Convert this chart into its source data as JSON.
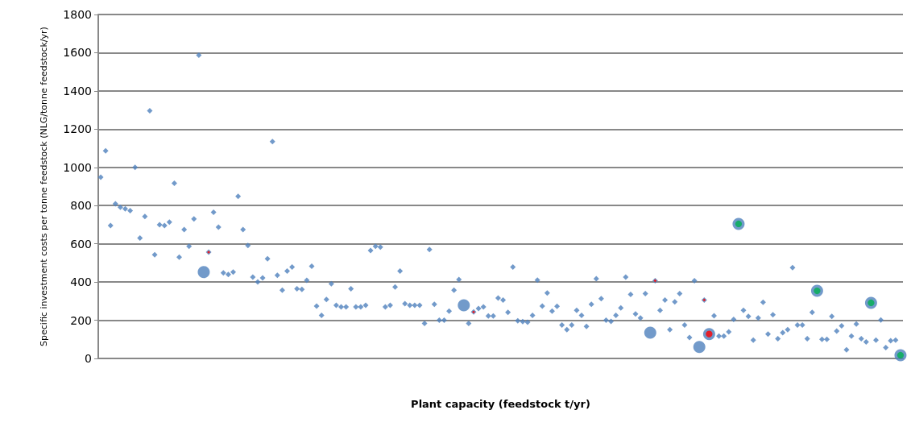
{
  "chart_data": {
    "type": "scatter",
    "xlabel": "Plant capacity (feedstock t/yr)",
    "ylabel": "Specific investment costs per tonne feedstock (NLG/tonne feedstock/yr)",
    "categories": [
      null,
      null,
      null,
      null,
      null,
      null,
      null,
      null,
      null,
      null,
      null,
      null,
      null,
      null,
      null,
      null,
      null,
      null,
      null,
      null,
      null,
      null,
      null,
      null,
      null,
      null,
      null,
      null,
      null,
      null,
      null,
      null,
      null,
      null,
      null,
      null,
      null,
      null,
      null,
      null,
      null,
      null,
      null,
      null,
      null,
      null,
      null,
      null,
      null,
      null,
      null,
      null,
      null,
      null,
      null,
      null,
      null,
      null,
      null,
      null,
      null,
      null,
      null,
      null,
      null,
      null,
      null,
      null,
      null,
      null,
      null,
      null,
      null,
      null,
      null,
      null,
      null,
      null,
      null,
      null,
      null,
      null,
      null,
      null,
      null,
      null,
      null,
      null,
      null,
      null,
      null,
      null,
      null,
      null,
      null,
      null,
      null,
      null,
      null,
      null,
      null,
      null,
      null,
      null,
      null,
      null,
      null,
      null,
      null,
      null,
      null,
      null,
      null,
      null,
      null,
      null,
      null,
      null,
      null,
      null,
      null,
      null,
      null,
      null,
      null,
      null,
      null,
      null,
      null,
      null,
      null,
      null,
      null,
      null,
      null,
      null,
      null,
      null,
      null,
      null,
      null,
      null,
      null,
      null,
      null,
      null,
      null,
      null,
      null,
      null,
      null,
      null,
      null,
      null,
      null,
      null,
      null,
      null,
      null,
      null,
      null,
      null,
      null,
      null
    ],
    "ylim": [
      0,
      1800
    ],
    "yticks": [
      0,
      200,
      400,
      600,
      800,
      1000,
      1200,
      1400,
      1600,
      1800
    ],
    "grid": "y",
    "series": [
      {
        "color": "#4f81bd",
        "marker": "diamond",
        "values": [
          948,
          1087,
          696,
          809,
          791,
          783,
          774,
          1000,
          630,
          743,
          1296,
          543,
          700,
          696,
          713,
          917,
          530,
          674,
          587,
          730,
          1587,
          null,
          556,
          765,
          687,
          448,
          439,
          452,
          848,
          674,
          591,
          426,
          400,
          422,
          522,
          1135,
          435,
          357,
          457,
          478,
          365,
          361,
          409,
          483,
          274,
          226,
          309,
          391,
          278,
          270,
          270,
          365,
          270,
          270,
          278,
          565,
          587,
          583,
          270,
          278,
          374,
          457,
          287,
          278,
          278,
          278,
          183,
          570,
          283,
          200,
          200,
          248,
          357,
          413,
          null,
          183,
          243,
          261,
          270,
          222,
          222,
          316,
          306,
          241,
          478,
          197,
          193,
          190,
          226,
          410,
          274,
          342,
          248,
          273,
          175,
          151,
          175,
          252,
          226,
          168,
          284,
          417,
          313,
          200,
          194,
          226,
          265,
          426,
          335,
          233,
          212,
          339,
          null,
          407,
          252,
          306,
          151,
          296,
          339,
          175,
          110,
          407,
          null,
          306,
          null,
          223,
          117,
          117,
          139,
          204,
          null,
          252,
          220,
          96,
          212,
          294,
          128,
          229,
          103,
          135,
          151,
          475,
          175,
          175,
          103,
          241,
          null,
          100,
          100,
          220,
          143,
          171,
          45,
          117,
          180,
          103,
          86,
          null,
          96,
          201,
          57,
          93,
          96,
          null
        ]
      },
      {
        "color": "#4f81bd",
        "marker": "circle",
        "values": [
          null,
          null,
          null,
          null,
          null,
          null,
          null,
          null,
          null,
          null,
          null,
          null,
          null,
          null,
          null,
          null,
          null,
          null,
          null,
          null,
          null,
          452,
          null,
          null,
          null,
          null,
          null,
          null,
          null,
          null,
          null,
          null,
          null,
          null,
          null,
          null,
          null,
          null,
          null,
          null,
          null,
          null,
          null,
          null,
          null,
          null,
          null,
          null,
          null,
          null,
          null,
          null,
          null,
          null,
          null,
          null,
          null,
          null,
          null,
          null,
          null,
          null,
          null,
          null,
          null,
          null,
          null,
          null,
          null,
          null,
          null,
          null,
          null,
          null,
          278,
          null,
          null,
          null,
          null,
          null,
          null,
          null,
          null,
          null,
          null,
          null,
          null,
          null,
          null,
          null,
          null,
          null,
          null,
          null,
          null,
          null,
          null,
          null,
          null,
          null,
          null,
          null,
          null,
          null,
          null,
          null,
          null,
          null,
          null,
          null,
          null,
          null,
          135,
          null,
          null,
          null,
          null,
          null,
          null,
          null,
          null,
          null,
          60,
          null,
          128,
          null,
          null,
          null,
          null,
          null,
          704,
          null,
          null,
          null,
          null,
          null,
          null,
          null,
          null,
          null,
          null,
          null,
          null,
          null,
          null,
          null,
          354,
          null,
          null,
          null,
          null,
          null,
          null,
          null,
          null,
          null,
          null,
          291,
          null,
          null,
          null,
          null,
          null,
          17
        ]
      },
      {
        "color": "#ff0000",
        "marker": "diamond",
        "values": [
          null,
          null,
          null,
          null,
          null,
          null,
          null,
          null,
          null,
          null,
          null,
          null,
          null,
          null,
          null,
          null,
          null,
          null,
          null,
          null,
          null,
          null,
          556,
          null,
          null,
          null,
          null,
          null,
          null,
          null,
          null,
          null,
          null,
          null,
          null,
          null,
          null,
          null,
          null,
          null,
          null,
          null,
          null,
          null,
          null,
          null,
          null,
          null,
          null,
          null,
          null,
          null,
          null,
          null,
          null,
          null,
          null,
          null,
          null,
          null,
          null,
          null,
          null,
          null,
          null,
          null,
          null,
          null,
          null,
          null,
          null,
          null,
          null,
          null,
          null,
          null,
          243,
          null,
          null,
          null,
          null,
          null,
          null,
          null,
          null,
          null,
          null,
          null,
          null,
          null,
          null,
          null,
          null,
          null,
          null,
          null,
          null,
          null,
          null,
          null,
          null,
          null,
          null,
          null,
          null,
          null,
          null,
          null,
          null,
          null,
          null,
          null,
          null,
          407,
          null,
          null,
          null,
          null,
          null,
          null,
          null,
          null,
          null,
          306,
          null,
          null,
          null,
          null,
          null,
          null,
          null,
          null,
          null,
          null,
          null,
          null,
          null,
          null,
          null,
          null,
          null,
          null,
          null,
          null,
          null,
          null,
          null,
          null,
          null,
          null,
          null,
          null,
          null,
          null,
          null,
          null,
          null,
          null,
          null,
          null,
          null,
          null,
          null,
          null
        ]
      },
      {
        "color": "#ff0000",
        "marker": "circle",
        "values": [
          null,
          null,
          null,
          null,
          null,
          null,
          null,
          null,
          null,
          null,
          null,
          null,
          null,
          null,
          null,
          null,
          null,
          null,
          null,
          null,
          null,
          null,
          null,
          null,
          null,
          null,
          null,
          null,
          null,
          null,
          null,
          null,
          null,
          null,
          null,
          null,
          null,
          null,
          null,
          null,
          null,
          null,
          null,
          null,
          null,
          null,
          null,
          null,
          null,
          null,
          null,
          null,
          null,
          null,
          null,
          null,
          null,
          null,
          null,
          null,
          null,
          null,
          null,
          null,
          null,
          null,
          null,
          null,
          null,
          null,
          null,
          null,
          null,
          null,
          null,
          null,
          null,
          null,
          null,
          null,
          null,
          null,
          null,
          null,
          null,
          null,
          null,
          null,
          null,
          null,
          null,
          null,
          null,
          null,
          null,
          null,
          null,
          null,
          null,
          null,
          null,
          null,
          null,
          null,
          null,
          null,
          null,
          null,
          null,
          null,
          null,
          null,
          null,
          null,
          null,
          null,
          null,
          null,
          null,
          null,
          null,
          null,
          null,
          null,
          128,
          null,
          null,
          null,
          null,
          null,
          null,
          null,
          null,
          null,
          null,
          null,
          null,
          null,
          null,
          null,
          null,
          null,
          null,
          null,
          null,
          null,
          null,
          null,
          null,
          null,
          null,
          null,
          null,
          null,
          null,
          null,
          null,
          null,
          null,
          null,
          null,
          null,
          null,
          null
        ]
      },
      {
        "color": "#00b050",
        "marker": "circle",
        "values": [
          null,
          null,
          null,
          null,
          null,
          null,
          null,
          null,
          null,
          null,
          null,
          null,
          null,
          null,
          null,
          null,
          null,
          null,
          null,
          null,
          null,
          null,
          null,
          null,
          null,
          null,
          null,
          null,
          null,
          null,
          null,
          null,
          null,
          null,
          null,
          null,
          null,
          null,
          null,
          null,
          null,
          null,
          null,
          null,
          null,
          null,
          null,
          null,
          null,
          null,
          null,
          null,
          null,
          null,
          null,
          null,
          null,
          null,
          null,
          null,
          null,
          null,
          null,
          null,
          null,
          null,
          null,
          null,
          null,
          null,
          null,
          null,
          null,
          null,
          null,
          null,
          null,
          null,
          null,
          null,
          null,
          null,
          null,
          null,
          null,
          null,
          null,
          null,
          null,
          null,
          null,
          null,
          null,
          null,
          null,
          null,
          null,
          null,
          null,
          null,
          null,
          null,
          null,
          null,
          null,
          null,
          null,
          null,
          null,
          null,
          null,
          null,
          null,
          null,
          null,
          null,
          null,
          null,
          null,
          null,
          null,
          null,
          null,
          null,
          null,
          null,
          null,
          null,
          null,
          null,
          704,
          null,
          null,
          null,
          null,
          null,
          null,
          null,
          null,
          null,
          null,
          null,
          null,
          null,
          null,
          null,
          354,
          null,
          null,
          null,
          null,
          null,
          null,
          null,
          null,
          null,
          null,
          291,
          null,
          null,
          null,
          null,
          null,
          17
        ]
      }
    ]
  }
}
